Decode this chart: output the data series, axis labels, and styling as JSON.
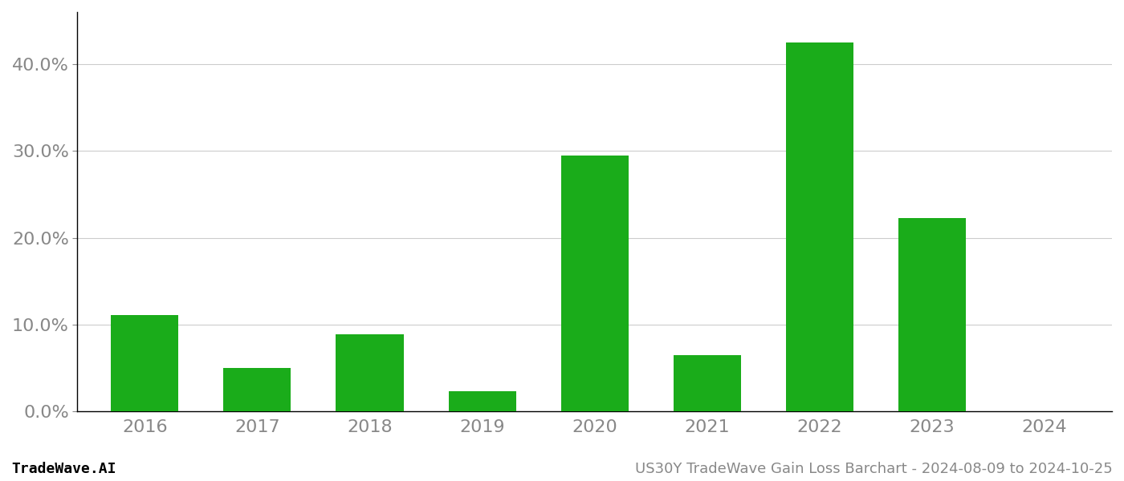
{
  "categories": [
    "2016",
    "2017",
    "2018",
    "2019",
    "2020",
    "2021",
    "2022",
    "2023",
    "2024"
  ],
  "values": [
    0.111,
    0.05,
    0.089,
    0.023,
    0.295,
    0.065,
    0.425,
    0.223,
    0.0
  ],
  "bar_color": "#1aac1a",
  "background_color": "#ffffff",
  "title": "US30Y TradeWave Gain Loss Barchart - 2024-08-09 to 2024-10-25",
  "watermark": "TradeWave.AI",
  "ylim": [
    0,
    0.46
  ],
  "ytick_values": [
    0.0,
    0.1,
    0.2,
    0.3,
    0.4
  ],
  "ytick_labels": [
    "0.0%",
    "10.0%",
    "20.0%",
    "30.0%",
    "40.0%"
  ],
  "grid_color": "#cccccc",
  "tick_color": "#888888",
  "title_fontsize": 13,
  "watermark_fontsize": 13,
  "axis_label_fontsize": 16,
  "bar_width": 0.6
}
